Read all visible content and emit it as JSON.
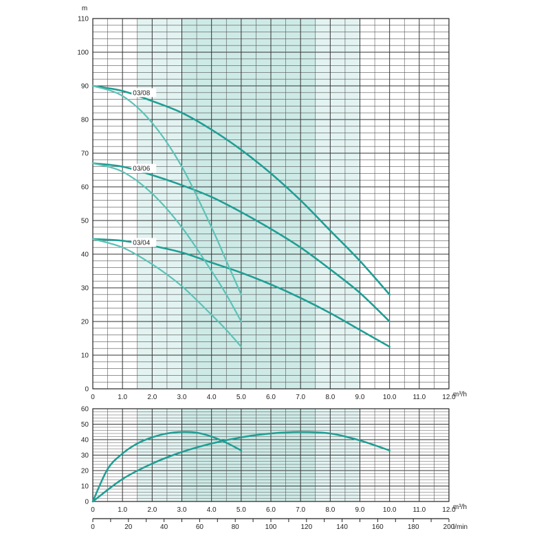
{
  "chart_data": [
    {
      "type": "line",
      "ylabel": "m",
      "xunit": "m³/h",
      "ylim": [
        0,
        110
      ],
      "xlim": [
        0,
        12
      ],
      "y_ticks": [
        "0",
        "10",
        "20",
        "30",
        "40",
        "50",
        "60",
        "70",
        "80",
        "90",
        "100",
        "110"
      ],
      "x_ticks": [
        "0",
        "1.0",
        "2.0",
        "3.0",
        "4.0",
        "5.0",
        "6.0",
        "7.0",
        "8.0",
        "9.0",
        "10.0",
        "11.0",
        "12.0"
      ],
      "grid": true,
      "bands": [
        {
          "x0": 1.5,
          "x1": 3.0,
          "shade": "#e2f3f1"
        },
        {
          "x0": 3.0,
          "x1": 7.5,
          "shade": "#cdeae6"
        },
        {
          "x0": 7.5,
          "x1": 9.0,
          "shade": "#e2f3f1"
        }
      ],
      "series": [
        {
          "name": "03/08",
          "style": "dark",
          "x": [
            0,
            1,
            2,
            3,
            4,
            5,
            6,
            7,
            8,
            9,
            10
          ],
          "y": [
            90,
            88.5,
            85.5,
            82,
            77,
            71,
            64,
            56,
            47,
            38,
            28
          ]
        },
        {
          "name": "03/06",
          "style": "dark",
          "x": [
            0,
            1,
            2,
            3,
            4,
            5,
            6,
            7,
            8,
            9,
            10
          ],
          "y": [
            67,
            66,
            63.5,
            60.5,
            57,
            52.5,
            47.5,
            42,
            35.5,
            28.5,
            20
          ]
        },
        {
          "name": "03/04",
          "style": "dark",
          "x": [
            0,
            1,
            2,
            3,
            4,
            5,
            6,
            7,
            8,
            9,
            10
          ],
          "y": [
            44.5,
            44,
            42.5,
            40.5,
            37.5,
            34.5,
            31,
            27,
            22.5,
            17.5,
            12.5
          ]
        },
        {
          "style": "light",
          "x": [
            0,
            1,
            2,
            3,
            4,
            4.5,
            5
          ],
          "y": [
            90,
            87,
            79,
            66,
            48,
            38,
            28
          ]
        },
        {
          "style": "light",
          "x": [
            0,
            1,
            2,
            3,
            4,
            4.5,
            5
          ],
          "y": [
            67,
            64.5,
            58,
            48,
            35,
            28,
            20
          ]
        },
        {
          "style": "light",
          "x": [
            0,
            1,
            2,
            3,
            4,
            4.5,
            5
          ],
          "y": [
            44.5,
            42,
            37,
            30.5,
            22,
            17.5,
            12.5
          ]
        }
      ]
    },
    {
      "type": "line",
      "xunit": "m³/h",
      "xunit2": "l/min",
      "ylim": [
        0,
        60
      ],
      "xlim": [
        0,
        12
      ],
      "y_ticks": [
        "0",
        "10",
        "20",
        "30",
        "40",
        "50",
        "60"
      ],
      "x_ticks": [
        "0",
        "1.0",
        "2.0",
        "3.0",
        "4.0",
        "5.0",
        "6.0",
        "7.0",
        "8.0",
        "9.0",
        "10.0",
        "11.0",
        "12.0"
      ],
      "x_ticks_lmin": [
        "0",
        "20",
        "40",
        "60",
        "80",
        "100",
        "120",
        "140",
        "160",
        "180",
        "200"
      ],
      "grid": true,
      "series": [
        {
          "style": "dark",
          "x": [
            0,
            0.5,
            1,
            1.5,
            2,
            2.5,
            3,
            3.5,
            4,
            4.5,
            5
          ],
          "y": [
            0,
            21,
            31,
            37.5,
            41.5,
            44,
            45,
            44.5,
            42,
            38,
            33
          ]
        },
        {
          "style": "dark",
          "x": [
            0,
            1,
            2,
            3,
            4,
            5,
            6,
            7,
            8,
            9,
            10
          ],
          "y": [
            0,
            14.5,
            24.5,
            32,
            37.5,
            41.5,
            44,
            45,
            44,
            39.5,
            33
          ]
        }
      ]
    }
  ]
}
